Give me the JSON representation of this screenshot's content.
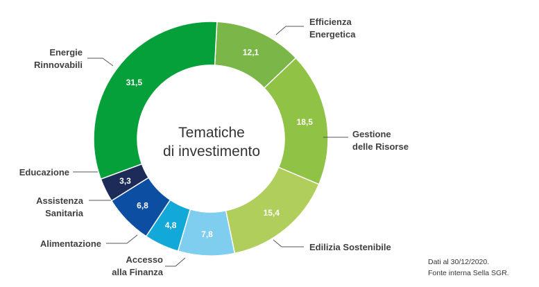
{
  "chart_data": {
    "type": "pie",
    "title": "Tematiche di investimento",
    "title_lines": [
      "Tematiche",
      "di investimento"
    ],
    "variant": "donut",
    "slices": [
      {
        "label_lines": [
          "Efficienza",
          "Energetica"
        ],
        "value": 12.1,
        "value_label": "12,1",
        "color": "#7ab648"
      },
      {
        "label_lines": [
          "Gestione",
          "delle Risorse"
        ],
        "value": 18.5,
        "value_label": "18,5",
        "color": "#8fc245"
      },
      {
        "label_lines": [
          "Edilizia Sostenibile"
        ],
        "value": 15.4,
        "value_label": "15,4",
        "color": "#b0ce5b"
      },
      {
        "label_lines": [
          "Accesso",
          "alla Finanza"
        ],
        "value": 7.8,
        "value_label": "7,8",
        "color": "#7fcdef"
      },
      {
        "label_lines": [
          "Alimentazione"
        ],
        "value": 4.8,
        "value_label": "4,8",
        "color": "#12a9d8"
      },
      {
        "label_lines": [
          "Assistenza",
          "Sanitaria"
        ],
        "value": 6.8,
        "value_label": "6,8",
        "color": "#0c4ea2"
      },
      {
        "label_lines": [
          "Educazione"
        ],
        "value": 3.3,
        "value_label": "3,3",
        "color": "#1c2b57"
      },
      {
        "label_lines": [
          "Energie",
          "Rinnovabili"
        ],
        "value": 31.5,
        "value_label": "31,5",
        "color": "#06a03a"
      }
    ],
    "start_angle_deg": 3,
    "direction": "clockwise"
  },
  "note": {
    "line1": "Dati al 30/12/2020.",
    "line2": "Fonte interna Sella SGR."
  }
}
